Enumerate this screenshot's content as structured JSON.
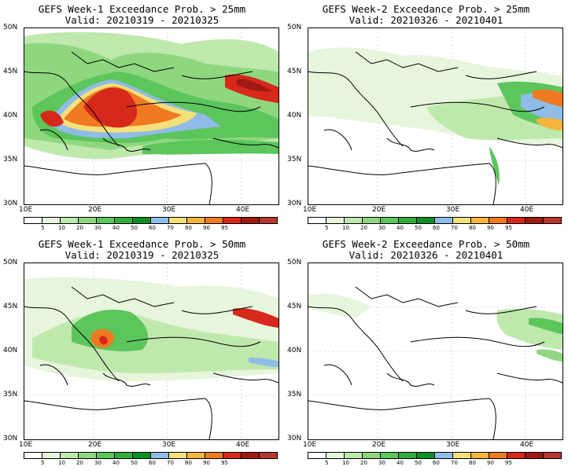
{
  "panels": [
    {
      "title": "GEFS Week-1 Exceedance Prob. > 25mm",
      "valid": "Valid: 20210319 - 20210325"
    },
    {
      "title": "GEFS Week-2 Exceedance Prob. > 25mm",
      "valid": "Valid: 20210326 - 20210401"
    },
    {
      "title": "GEFS Week-1 Exceedance Prob. > 50mm",
      "valid": "Valid: 20210319 - 20210325"
    },
    {
      "title": "GEFS Week-2 Exceedance Prob. > 50mm",
      "valid": "Valid: 20210326 - 20210401"
    }
  ],
  "axes": {
    "lat_labels": [
      "50N",
      "45N",
      "40N",
      "35N",
      "30N"
    ],
    "lon_labels": [
      "10E",
      "20E",
      "30E",
      "40E"
    ]
  },
  "colorbar": {
    "labels": [
      "5",
      "10",
      "20",
      "30",
      "40",
      "50",
      "60",
      "70",
      "80",
      "90",
      "95"
    ],
    "colors": [
      "#ffffff",
      "#e6f5dc",
      "#bfe8ad",
      "#8fd77f",
      "#5cc55c",
      "#33ad3a",
      "#0a8f24",
      "#8fbce8",
      "#f4e07a",
      "#f5b43a",
      "#ef7a22",
      "#d6281b",
      "#9e1a12",
      "#b8362f"
    ]
  },
  "map_colors": {
    "land_light": "#e6f5dc",
    "low": "#bfe8ad",
    "mid": "#8fd77f",
    "green": "#5cc55c",
    "dark_green": "#33ad3a",
    "blue": "#8fbce8",
    "yellow": "#f4e07a",
    "orange": "#f5b43a",
    "dark_orange": "#ef7a22",
    "red": "#d6281b",
    "dark_red": "#9e1a12"
  }
}
